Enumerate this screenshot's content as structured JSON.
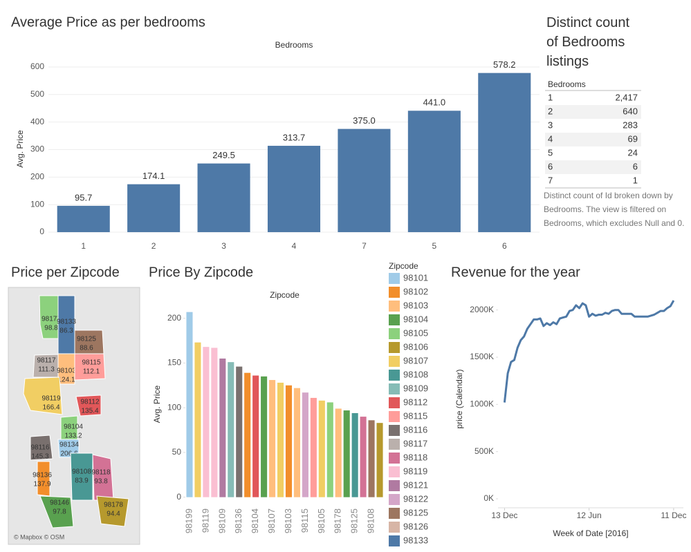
{
  "chart_data": [
    {
      "type": "bar",
      "title": "Average Price as per bedrooms",
      "x_title": "Bedrooms",
      "ylabel": "Avg. Price",
      "categories": [
        "1",
        "2",
        "3",
        "4",
        "7",
        "5",
        "6"
      ],
      "values": [
        95.7,
        174.1,
        249.5,
        313.7,
        375.0,
        441.0,
        578.2
      ],
      "value_labels": [
        "95.7",
        "174.1",
        "249.5",
        "313.7",
        "375.0",
        "441.0",
        "578.2"
      ],
      "color": "#4e79a7",
      "ylim": [
        -25,
        630
      ],
      "yticks": [
        0,
        100,
        200,
        300,
        400,
        500,
        600
      ],
      "grid": true
    },
    {
      "type": "bar",
      "title": "Price By Zipcode",
      "x_title": "Zipcode",
      "ylabel": "Avg. Price",
      "categories": [
        "98199",
        null,
        "98119",
        null,
        "98109",
        null,
        "98136",
        null,
        "98104",
        null,
        "98107",
        null,
        "98103",
        null,
        "98115",
        null,
        "98105",
        null,
        "98178",
        null,
        "98125",
        null,
        "98108",
        null
      ],
      "values": [
        207,
        173,
        168,
        167,
        155,
        151,
        146,
        139,
        136,
        135,
        131,
        128,
        125,
        122,
        117,
        111,
        108,
        106,
        99,
        97,
        94,
        90,
        86,
        83
      ],
      "colors": [
        "#a0cbe8",
        "#f1ce63",
        "#fabfd2",
        "#fabfd2",
        "#b07aa1",
        "#86bcb6",
        "#79706e",
        "#f28e2b",
        "#e15759",
        "#59a14f",
        "#ffbe7d",
        "#f1ce63",
        "#f28e2b",
        "#ffbe7d",
        "#d4a6c8",
        "#ff9d9a",
        "#f1ce63",
        "#8cd17d",
        "#ffbe7d",
        "#59a14f",
        "#499894",
        "#d37295",
        "#9d7660",
        "#b6992d"
      ],
      "ylim": [
        -8,
        216
      ],
      "yticks": [
        0,
        50,
        100,
        150,
        200
      ],
      "grid": false,
      "legend": {
        "title": "Zipcode",
        "items": [
          {
            "name": "98101",
            "color": "#a0cbe8"
          },
          {
            "name": "98102",
            "color": "#f28e2b"
          },
          {
            "name": "98103",
            "color": "#ffbe7d"
          },
          {
            "name": "98104",
            "color": "#59a14f"
          },
          {
            "name": "98105",
            "color": "#8cd17d"
          },
          {
            "name": "98106",
            "color": "#b6992d"
          },
          {
            "name": "98107",
            "color": "#f1ce63"
          },
          {
            "name": "98108",
            "color": "#499894"
          },
          {
            "name": "98109",
            "color": "#86bcb6"
          },
          {
            "name": "98112",
            "color": "#e15759"
          },
          {
            "name": "98115",
            "color": "#ff9d9a"
          },
          {
            "name": "98116",
            "color": "#79706e"
          },
          {
            "name": "98117",
            "color": "#bab0ac"
          },
          {
            "name": "98118",
            "color": "#d37295"
          },
          {
            "name": "98119",
            "color": "#fabfd2"
          },
          {
            "name": "98121",
            "color": "#b07aa1"
          },
          {
            "name": "98122",
            "color": "#d4a6c8"
          },
          {
            "name": "98125",
            "color": "#9d7660"
          },
          {
            "name": "98126",
            "color": "#d7b5a6"
          },
          {
            "name": "98133",
            "color": "#4e79a7"
          }
        ]
      }
    },
    {
      "type": "line",
      "title": "Revenue for the year",
      "x_title": "Week of Date [2016]",
      "ylabel": "price (Calendar)",
      "x": [
        0,
        1,
        2,
        3,
        4,
        5,
        6,
        7,
        8,
        9,
        10,
        11,
        12,
        13,
        14,
        15,
        16,
        17,
        18,
        19,
        20,
        21,
        22,
        23,
        24,
        25,
        26,
        27,
        28,
        29,
        30,
        31,
        32,
        33,
        34,
        35,
        36,
        37,
        38,
        39,
        40,
        41,
        42,
        43,
        44,
        45,
        46,
        47,
        48,
        49,
        50,
        51,
        52
      ],
      "values": [
        1020000,
        1330000,
        1450000,
        1470000,
        1600000,
        1680000,
        1720000,
        1800000,
        1850000,
        1900000,
        1900000,
        1910000,
        1830000,
        1860000,
        1840000,
        1870000,
        1850000,
        1910000,
        1920000,
        1930000,
        1990000,
        2000000,
        2050000,
        2020000,
        2070000,
        2050000,
        1930000,
        1960000,
        1940000,
        1950000,
        1950000,
        1970000,
        1960000,
        1990000,
        2000000,
        2000000,
        1960000,
        1960000,
        1960000,
        1960000,
        1930000,
        1930000,
        1930000,
        1930000,
        1930000,
        1940000,
        1950000,
        1970000,
        1990000,
        1990000,
        2020000,
        2040000,
        2100000
      ],
      "color": "#4e79a7",
      "xlim": [
        -2,
        55
      ],
      "xticks": [
        {
          "value": 0,
          "label": "13 Dec"
        },
        {
          "value": 26,
          "label": "12 Jun"
        },
        {
          "value": 52,
          "label": "11 Dec"
        }
      ],
      "ylim": [
        -95000,
        2210000
      ],
      "yticks": [
        {
          "value": 0,
          "label": "0K"
        },
        {
          "value": 500000,
          "label": "500K"
        },
        {
          "value": 1000000,
          "label": "1000K"
        },
        {
          "value": 1500000,
          "label": "1500K"
        },
        {
          "value": 2000000,
          "label": "2000K"
        }
      ],
      "grid": false
    }
  ],
  "table": {
    "title": "Distinct count of Bedrooms listings",
    "header": "Bedrooms",
    "rows": [
      [
        "1",
        "2,417"
      ],
      [
        "2",
        "640"
      ],
      [
        "3",
        "283"
      ],
      [
        "4",
        "69"
      ],
      [
        "5",
        "24"
      ],
      [
        "6",
        "6"
      ],
      [
        "7",
        "1"
      ]
    ],
    "caption": "Distinct count of Id broken down by Bedrooms. The view is filtered on Bedrooms, which excludes Null and 0."
  },
  "map": {
    "title": "Price per Zipcode",
    "attribution": "© Mapbox © OSM",
    "regions": [
      {
        "zip": "98177",
        "value": 98.8,
        "color": "#8cd17d"
      },
      {
        "zip": "98133",
        "value": 86.3,
        "color": "#4e79a7"
      },
      {
        "zip": "98125",
        "value": 88.6,
        "color": "#9d7660"
      },
      {
        "zip": "98117",
        "value": 111.3,
        "color": "#bab0ac"
      },
      {
        "zip": "98103",
        "value": 124.1,
        "color": "#ffbe7d"
      },
      {
        "zip": "98115",
        "value": 112.1,
        "color": "#ff9d9a"
      },
      {
        "zip": "98119",
        "value": 166.4,
        "color": "#f1ce63"
      },
      {
        "zip": "98112",
        "value": 135.4,
        "color": "#e15759"
      },
      {
        "zip": "98104",
        "value": 133.2,
        "color": "#8cd17d"
      },
      {
        "zip": "98134",
        "value": 206.6,
        "color": "#a0cbe8"
      },
      {
        "zip": "98116",
        "value": 145.3,
        "color": "#79706e"
      },
      {
        "zip": "98136",
        "value": 137.9,
        "color": "#f28e2b"
      },
      {
        "zip": "98108",
        "value": 83.9,
        "color": "#499894"
      },
      {
        "zip": "98118",
        "value": 93.8,
        "color": "#d37295"
      },
      {
        "zip": "98146",
        "value": 97.8,
        "color": "#59a14f"
      },
      {
        "zip": "98178",
        "value": 94.4,
        "color": "#b6992d"
      }
    ]
  }
}
